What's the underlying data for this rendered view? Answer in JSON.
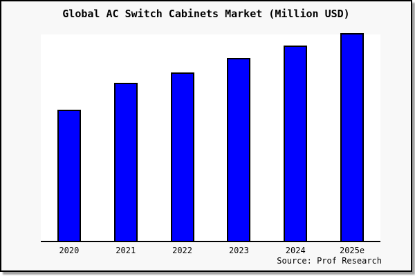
{
  "window": {
    "background_color": "#f8f8f8",
    "plot_background_color": "#ffffff",
    "frame_border_color": "#000000"
  },
  "chart_data": {
    "type": "bar",
    "title": "Global AC Switch Cabinets Market (Million USD)",
    "categories": [
      "2020",
      "2021",
      "2022",
      "2023",
      "2024",
      "2025e"
    ],
    "values": [
      63,
      76,
      81,
      88,
      94,
      100
    ],
    "xlabel": "",
    "ylabel": "",
    "ylim": [
      0,
      100
    ],
    "grid": false,
    "legend": "none",
    "y_axis_ticks_visible": false,
    "bar_color": "#0000ff",
    "bar_border_color": "#000000",
    "axis_color": "#000000"
  },
  "footer": {
    "source_label": "Source: Prof Research"
  }
}
